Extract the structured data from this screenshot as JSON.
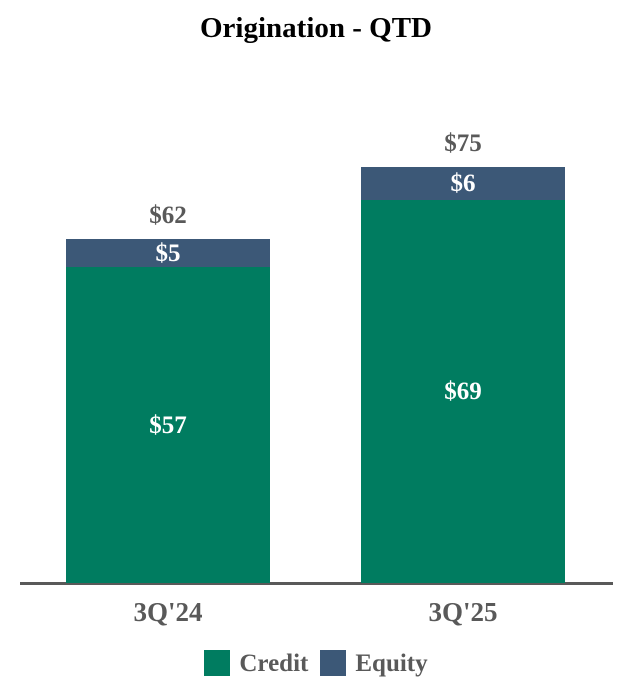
{
  "chart_data": {
    "type": "bar",
    "stacked": true,
    "title": "Origination - QTD",
    "categories": [
      "3Q'24",
      "3Q'25"
    ],
    "series": [
      {
        "name": "Credit",
        "color": "#007C60",
        "values": [
          57,
          69
        ],
        "labels": [
          "$57",
          "$69"
        ]
      },
      {
        "name": "Equity",
        "color": "#3C5877",
        "values": [
          5,
          6
        ],
        "labels": [
          "$5",
          "$6"
        ]
      }
    ],
    "totals": [
      62,
      75
    ],
    "total_labels": [
      "$62",
      "$75"
    ],
    "value_prefix": "$",
    "ylim": [
      0,
      80
    ],
    "grid": false,
    "y_axis_visible": false,
    "legend_position": "bottom",
    "colors": {
      "credit": "#007C60",
      "equity": "#3C5877",
      "axis_line": "#595959",
      "label_text": "#595959",
      "title_text": "#000000",
      "bar_value_text": "#ffffff"
    }
  }
}
